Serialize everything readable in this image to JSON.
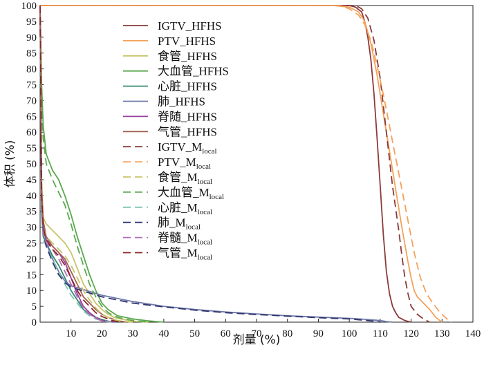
{
  "chart_data": {
    "type": "line",
    "xlabel": "剂量 (%)",
    "ylabel": "体积 (%)",
    "xlim": [
      0,
      140
    ],
    "ylim": [
      0,
      100
    ],
    "xticks": [
      10,
      20,
      30,
      40,
      50,
      60,
      70,
      80,
      90,
      100,
      110,
      120,
      130,
      140
    ],
    "yticks": [
      0,
      5,
      10,
      15,
      20,
      25,
      30,
      35,
      40,
      45,
      50,
      55,
      60,
      65,
      70,
      75,
      80,
      85,
      90,
      95,
      100
    ],
    "grid": false,
    "legend_position": "top-center",
    "series": [
      {
        "name": "IGTV_HFHS",
        "label_main": "IGTV_HFHS",
        "label_sub": "",
        "color": "#8b3a3a",
        "dash": "solid",
        "x": [
          0,
          100,
          102,
          104,
          105,
          106,
          107,
          108,
          109,
          110,
          111,
          112,
          113,
          114,
          115,
          116,
          118,
          120
        ],
        "y": [
          100,
          100,
          99.5,
          98,
          95,
          90,
          83,
          72,
          58,
          43,
          28,
          16,
          9,
          5,
          3,
          1.5,
          0.5,
          0
        ]
      },
      {
        "name": "PTV_HFHS",
        "label_main": "PTV_HFHS",
        "label_sub": "",
        "color": "#f4a15a",
        "dash": "solid",
        "x": [
          0,
          95,
          100,
          103,
          105,
          107,
          109,
          111,
          113,
          115,
          117,
          119,
          120,
          121,
          122,
          124,
          126,
          128,
          130
        ],
        "y": [
          100,
          100,
          99.5,
          98,
          95,
          88,
          78,
          66,
          54,
          42,
          30,
          19,
          14,
          10,
          8,
          6,
          4,
          1.5,
          0
        ]
      },
      {
        "name": "食管_HFHS",
        "label_main": "食管_HFHS",
        "label_sub": "",
        "color": "#c9c46a",
        "dash": "solid",
        "x": [
          0,
          0.5,
          1,
          2,
          4,
          6,
          8,
          10,
          12,
          14,
          16,
          18,
          20,
          22,
          24,
          26,
          30,
          35
        ],
        "y": [
          100,
          45,
          33,
          31,
          29,
          27,
          25,
          22,
          17,
          12,
          9,
          6,
          4,
          2.5,
          1.5,
          1,
          0.3,
          0
        ]
      },
      {
        "name": "大血管_HFHS",
        "label_main": "大血管_HFHS",
        "label_sub": "",
        "color": "#5aa84e",
        "dash": "solid",
        "x": [
          0,
          0.5,
          1,
          2,
          4,
          6,
          8,
          10,
          12,
          14,
          16,
          18,
          20,
          22,
          25,
          30,
          35,
          40
        ],
        "y": [
          100,
          75,
          62,
          53,
          48,
          45,
          40,
          34,
          27,
          21,
          15,
          10,
          6,
          4,
          2,
          1,
          0.4,
          0
        ]
      },
      {
        "name": "心脏_HFHS",
        "label_main": "心脏_HFHS",
        "label_sub": "",
        "color": "#2f8a6e",
        "dash": "solid",
        "x": [
          0,
          0.5,
          1,
          2,
          4,
          6,
          8,
          10,
          12,
          14,
          16,
          18,
          20,
          22,
          25
        ],
        "y": [
          100,
          35,
          27,
          25,
          21,
          18,
          14,
          10,
          7,
          4,
          2.5,
          1.5,
          0.8,
          0.3,
          0
        ]
      },
      {
        "name": "肺_HFHS",
        "label_main": "肺_HFHS",
        "label_sub": "",
        "color": "#6f7aa8",
        "dash": "solid",
        "x": [
          0,
          0.5,
          1,
          2,
          4,
          6,
          8,
          10,
          15,
          20,
          30,
          40,
          50,
          60,
          70,
          80,
          90,
          100,
          105,
          110,
          112,
          114
        ],
        "y": [
          100,
          40,
          30,
          25,
          20,
          16,
          13,
          11.5,
          10,
          8.5,
          6.5,
          5,
          4,
          3.2,
          2.6,
          2,
          1.6,
          1.2,
          0.9,
          0.5,
          0.2,
          0
        ]
      },
      {
        "name": "脊随_HFHS",
        "label_main": "脊随_HFHS",
        "label_sub": "",
        "color": "#9a3fa0",
        "dash": "solid",
        "x": [
          0,
          0.5,
          1,
          2,
          4,
          6,
          8,
          10,
          12,
          14,
          16,
          18,
          20,
          24
        ],
        "y": [
          100,
          40,
          30,
          26,
          24,
          22,
          19,
          14,
          9,
          5,
          3,
          1.5,
          0.5,
          0
        ]
      },
      {
        "name": "气管_HFHS",
        "label_main": "气管_HFHS",
        "label_sub": "",
        "color": "#a06050",
        "dash": "solid",
        "x": [
          0,
          0.5,
          1,
          2,
          4,
          6,
          8,
          10,
          12,
          14,
          16,
          18,
          20,
          22,
          25,
          28
        ],
        "y": [
          100,
          42,
          32,
          27,
          24,
          22,
          20,
          16,
          12,
          8,
          6,
          4,
          2.5,
          1.5,
          0.5,
          0
        ]
      },
      {
        "name": "IGTV_Mlocal",
        "label_main": "IGTV_M",
        "label_sub": "local",
        "color": "#8b3a3a",
        "dash": "dashed",
        "x": [
          0,
          102,
          104,
          106,
          108,
          110,
          112,
          114,
          116,
          117,
          118,
          119,
          120,
          122,
          124,
          126
        ],
        "y": [
          100,
          100,
          99,
          96,
          89,
          77,
          60,
          43,
          29,
          21,
          14,
          9,
          5,
          2.5,
          1,
          0
        ]
      },
      {
        "name": "PTV_Mlocal",
        "label_main": "PTV_M",
        "label_sub": "local",
        "color": "#f4a15a",
        "dash": "dashed",
        "x": [
          0,
          97,
          100,
          103,
          105,
          107,
          109,
          111,
          113,
          115,
          117,
          119,
          121,
          123,
          125,
          127,
          129,
          131,
          133
        ],
        "y": [
          100,
          100,
          99,
          97,
          94,
          89,
          81,
          72,
          62,
          52,
          42,
          32,
          22,
          14,
          9,
          6,
          3.5,
          1.5,
          0
        ]
      },
      {
        "name": "食管_Mlocal",
        "label_main": "食管_M",
        "label_sub": "local",
        "color": "#c9c46a",
        "dash": "dashed",
        "x": [
          0,
          0.5,
          1,
          2,
          4,
          6,
          8,
          10,
          12,
          14,
          16,
          18,
          20,
          22,
          25,
          30
        ],
        "y": [
          100,
          40,
          30,
          27,
          25,
          23,
          21,
          18,
          14,
          10,
          7,
          4.5,
          2.5,
          1.5,
          0.5,
          0
        ]
      },
      {
        "name": "大血管_Mlocal",
        "label_main": "大血管_M",
        "label_sub": "local",
        "color": "#5aa84e",
        "dash": "dashed",
        "x": [
          0,
          0.5,
          1,
          2,
          4,
          6,
          8,
          10,
          12,
          14,
          16,
          18,
          20,
          22,
          25,
          30,
          35
        ],
        "y": [
          100,
          70,
          58,
          50,
          45,
          41,
          37,
          31,
          24,
          18,
          12,
          8,
          5,
          3,
          1.5,
          0.5,
          0
        ]
      },
      {
        "name": "心脏_Mlocal",
        "label_main": "心脏_M",
        "label_sub": "local",
        "color": "#7fc4b4",
        "dash": "dashed",
        "x": [
          0,
          0.5,
          1,
          2,
          4,
          6,
          8,
          10,
          12,
          14,
          16,
          18,
          20,
          23
        ],
        "y": [
          100,
          33,
          26,
          24,
          20,
          16,
          12,
          8.5,
          6,
          3.5,
          2,
          1,
          0.5,
          0
        ]
      },
      {
        "name": "肺_Mlocal",
        "label_main": "肺_M",
        "label_sub": "local",
        "color": "#2e3570",
        "dash": "dashed",
        "x": [
          0,
          0.5,
          1,
          2,
          4,
          6,
          8,
          10,
          15,
          20,
          30,
          40,
          50,
          60,
          70,
          80,
          90,
          100,
          105,
          108,
          110
        ],
        "y": [
          100,
          38,
          28,
          24,
          19,
          15,
          12.5,
          11,
          9.5,
          8,
          6,
          4.8,
          3.8,
          3,
          2.4,
          1.9,
          1.4,
          1,
          0.6,
          0.3,
          0
        ]
      },
      {
        "name": "脊髓_Mlocal",
        "label_main": "脊髓_M",
        "label_sub": "local",
        "color": "#b06fb8",
        "dash": "dashed",
        "x": [
          0,
          0.5,
          1,
          2,
          4,
          6,
          8,
          10,
          12,
          14,
          16,
          18,
          20,
          22
        ],
        "y": [
          100,
          38,
          28,
          25,
          23,
          20,
          16,
          12,
          8,
          4.5,
          2.5,
          1.2,
          0.4,
          0
        ]
      },
      {
        "name": "气管_Mlocal",
        "label_main": "气管_M",
        "label_sub": "local",
        "color": "#8b2525",
        "dash": "dashed",
        "x": [
          0,
          0.5,
          1,
          2,
          4,
          6,
          8,
          10,
          12,
          14,
          16,
          18,
          20,
          23,
          26
        ],
        "y": [
          100,
          40,
          30,
          26,
          23,
          21,
          18,
          14,
          10,
          7,
          5,
          3,
          1.8,
          0.6,
          0
        ]
      }
    ]
  }
}
